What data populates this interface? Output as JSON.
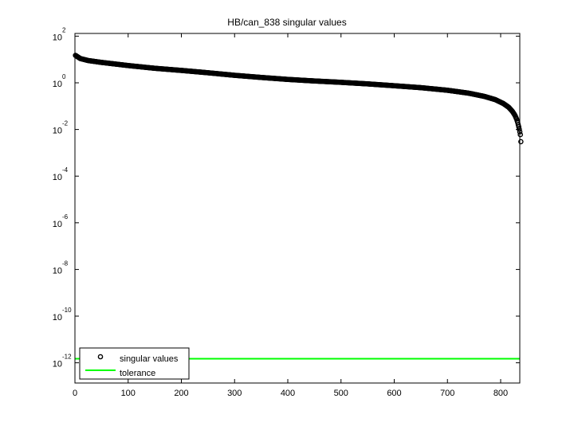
{
  "figure": {
    "title": "HB/can_838 singular values",
    "background": "#ffffff"
  },
  "legend": {
    "items": [
      {
        "label": "singular values",
        "marker": "circle-open",
        "color": "#000000"
      },
      {
        "label": "tolerance",
        "marker": "line",
        "color": "#00ff00"
      }
    ],
    "position": "lower-left"
  },
  "chart_data": {
    "type": "scatter",
    "title": "HB/can_838 singular values",
    "xlabel": "",
    "ylabel": "",
    "xlim": [
      0,
      838
    ],
    "ylim_log10": [
      -13,
      2
    ],
    "yscale": "log",
    "xticks": [
      0,
      100,
      200,
      300,
      400,
      500,
      600,
      700,
      800
    ],
    "yticks": [
      "10^2",
      "10^0",
      "10^-2",
      "10^-4",
      "10^-6",
      "10^-8",
      "10^-10",
      "10^-12"
    ],
    "grid": false,
    "legend_position": "lower-left",
    "series": [
      {
        "name": "singular values",
        "style": "black open circle markers",
        "x": [
          1,
          10,
          25,
          50,
          100,
          150,
          200,
          250,
          300,
          350,
          400,
          450,
          500,
          550,
          600,
          650,
          700,
          740,
          770,
          790,
          805,
          815,
          822,
          827,
          830,
          832,
          834,
          836,
          837,
          838
        ],
        "y": [
          15,
          11,
          9,
          7.5,
          5.5,
          4.2,
          3.4,
          2.7,
          2.1,
          1.7,
          1.4,
          1.2,
          1.05,
          0.9,
          0.75,
          0.62,
          0.48,
          0.36,
          0.26,
          0.19,
          0.13,
          0.09,
          0.06,
          0.04,
          0.028,
          0.02,
          0.013,
          0.008,
          0.006,
          0.003
        ]
      },
      {
        "name": "tolerance",
        "style": "green solid line",
        "x": [
          0,
          838
        ],
        "y": [
          1.5e-12,
          1.5e-12
        ]
      }
    ]
  }
}
